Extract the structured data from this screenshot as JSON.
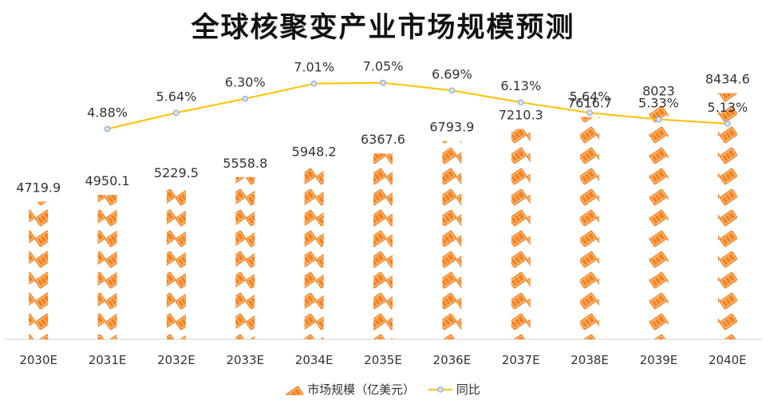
{
  "title": "全球核聚变产业市场规模预测",
  "colors": {
    "bar": "#F5821F",
    "bar_light": "#FBC28C",
    "line": "#FFC000",
    "marker_fill": "#D9E4F5",
    "marker_stroke": "#8EA9DB"
  },
  "chart_data": {
    "type": "bar",
    "title": "全球核聚变产业市场规模预测",
    "categories": [
      "2030E",
      "2031E",
      "2032E",
      "2033E",
      "2034E",
      "2035E",
      "2036E",
      "2037E",
      "2038E",
      "2039E",
      "2040E"
    ],
    "series": [
      {
        "name": "市场规模（亿美元）",
        "type": "bar",
        "axis": "left",
        "values": [
          4719.9,
          4950.1,
          5229.5,
          5558.8,
          5948.2,
          6367.6,
          6793.9,
          7210.3,
          7616.7,
          8023,
          8434.6
        ],
        "labels": [
          "4719.9",
          "4950.1",
          "5229.5",
          "5558.8",
          "5948.2",
          "6367.6",
          "6793.9",
          "7210.3",
          "7616.7",
          "8023",
          "8434.6"
        ]
      },
      {
        "name": "同比",
        "type": "line",
        "axis": "right",
        "values": [
          null,
          4.88,
          5.64,
          6.3,
          7.01,
          7.05,
          6.69,
          6.13,
          5.64,
          5.33,
          5.13
        ],
        "labels": [
          "",
          "4.88%",
          "5.64%",
          "6.30%",
          "7.01%",
          "7.05%",
          "6.69%",
          "6.13%",
          "5.64%",
          "5.33%",
          "5.13%"
        ]
      }
    ],
    "ylim": [
      0,
      9000
    ],
    "y2lim": [
      -5,
      10
    ],
    "grid": false,
    "legend_position": "bottom"
  },
  "legend": {
    "bar_label": "市场规模（亿美元）",
    "line_label": "同比"
  }
}
